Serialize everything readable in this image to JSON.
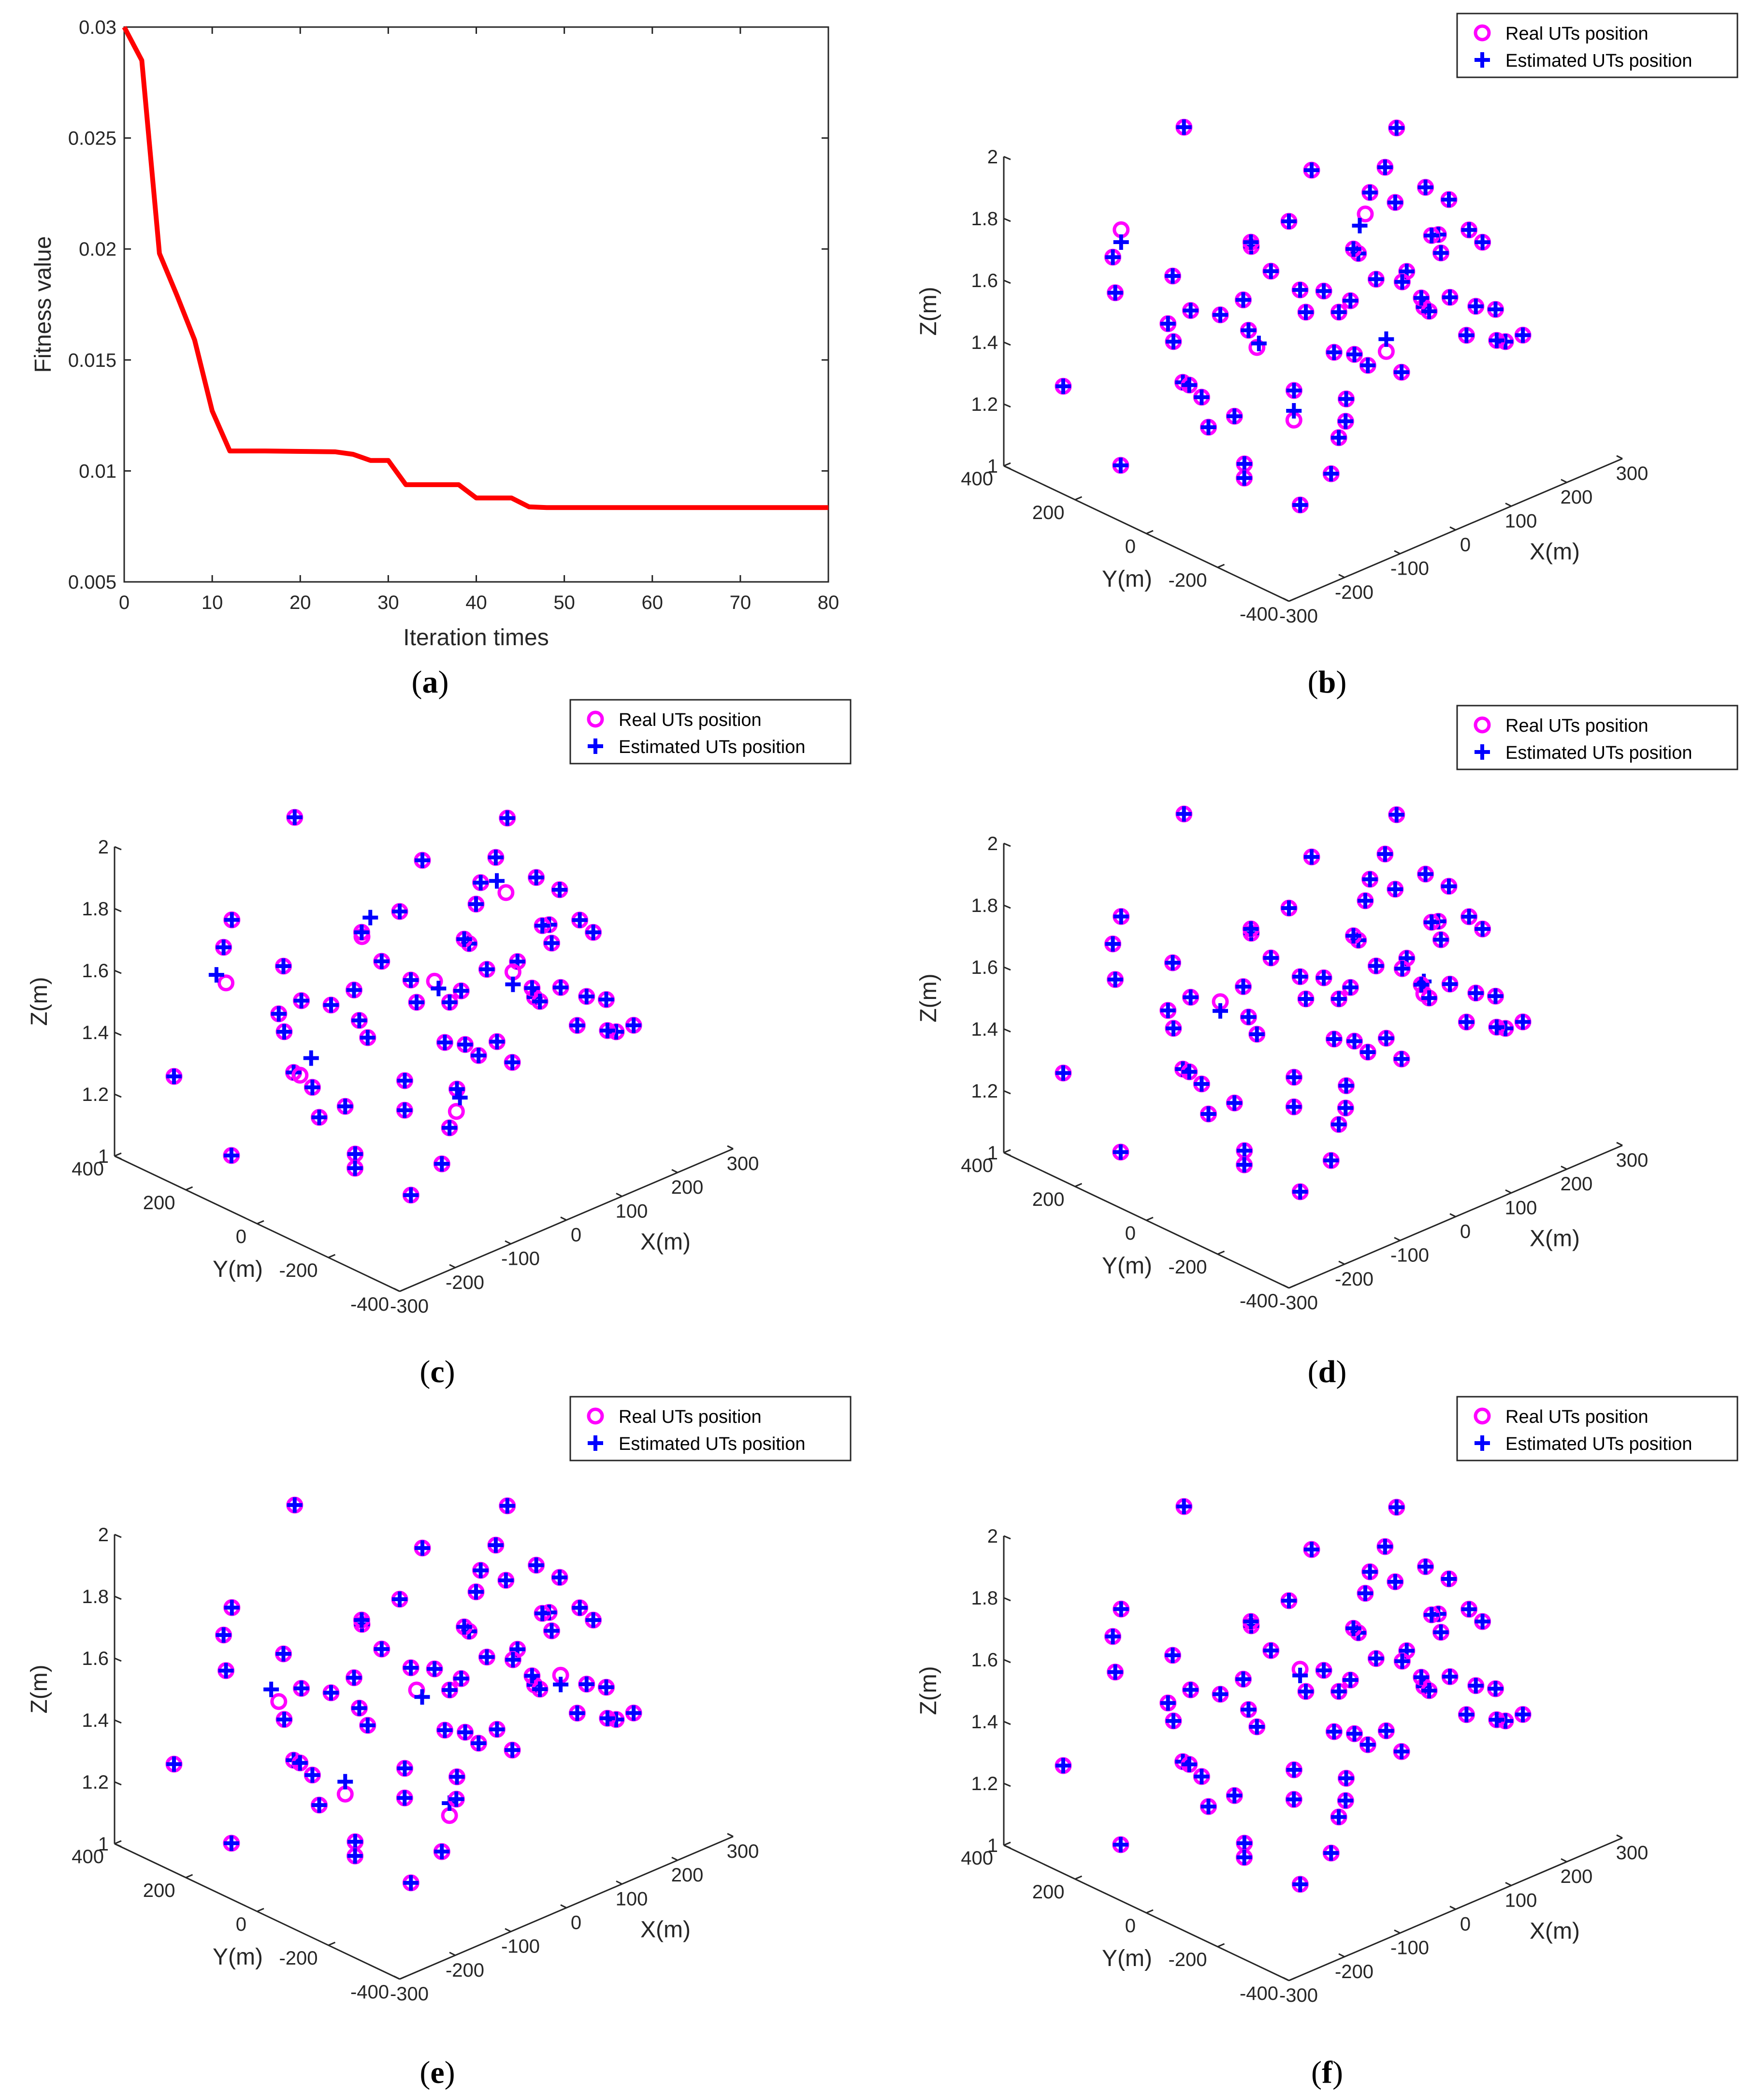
{
  "figure": {
    "captions": [
      "(a)",
      "(b)",
      "(c)",
      "(d)",
      "(e)",
      "(f)"
    ],
    "caption_letters": [
      "a",
      "b",
      "c",
      "d",
      "e",
      "f"
    ]
  },
  "colors": {
    "line": "#ff0000",
    "real_marker": "#ff00ff",
    "estimated_marker": "#0000ff",
    "axis": "#262626"
  },
  "chart_data": [
    {
      "id": "a",
      "type": "line",
      "title": "",
      "xlabel": "Iteration times",
      "ylabel": "Fitness value",
      "xlim": [
        0,
        80
      ],
      "ylim": [
        0.005,
        0.03
      ],
      "xticks": [
        0,
        10,
        20,
        30,
        40,
        50,
        60,
        70,
        80
      ],
      "xticklabels": [
        "0",
        "10",
        "20",
        "30",
        "40",
        "50",
        "60",
        "70",
        "80"
      ],
      "yticks": [
        0.005,
        0.01,
        0.015,
        0.02,
        0.025,
        0.03
      ],
      "yticklabels": [
        "0.005",
        "0.01",
        "0.015",
        "0.02",
        "0.025",
        "0.03"
      ],
      "series": [
        {
          "name": "Fitness value",
          "x": [
            0,
            2,
            4,
            6,
            8,
            10,
            12,
            16,
            20,
            24,
            26,
            28,
            30,
            32,
            34,
            36,
            38,
            40,
            42,
            44,
            46,
            48,
            50,
            60,
            70,
            80
          ],
          "y": [
            0.03,
            0.0285,
            0.0198,
            0.0179,
            0.0159,
            0.0127,
            0.0109,
            0.0109,
            0.01088,
            0.01086,
            0.01075,
            0.01047,
            0.01047,
            0.00938,
            0.00938,
            0.00938,
            0.00938,
            0.00878,
            0.00878,
            0.00878,
            0.00838,
            0.00835,
            0.00835,
            0.00835,
            0.00835,
            0.00835
          ]
        }
      ]
    },
    {
      "id": "3d-positions",
      "type": "scatter",
      "panels": [
        "b",
        "c",
        "d",
        "e",
        "f"
      ],
      "title": "",
      "xlabel": "X(m)",
      "ylabel": "Y(m)",
      "zlabel": "Z(m)",
      "xlim": [
        -300,
        300
      ],
      "ylim": [
        -400,
        400
      ],
      "zlim": [
        1,
        2
      ],
      "xticklabels": [
        "-300",
        "-200",
        "-100",
        "0",
        "100",
        "200",
        "300"
      ],
      "yticklabels": [
        "-400",
        "-200",
        "0",
        "200",
        "400"
      ],
      "zticklabels": [
        "1",
        "1.2",
        "1.4",
        "1.6",
        "1.8",
        "2"
      ],
      "legend": [
        "Real UTs position",
        "Estimated UTs position"
      ],
      "legend_location": "top-right",
      "series_names": [
        "Real UTs position",
        "Estimated UTs position"
      ],
      "real_points": [
        [
          -270,
          280,
          1.3
        ],
        [
          -200,
          250,
          1.68
        ],
        [
          -170,
          290,
          1.52
        ],
        [
          -230,
          180,
          1.83
        ],
        [
          -150,
          160,
          1.63
        ],
        [
          -120,
          220,
          1.42
        ],
        [
          -60,
          250,
          1.4
        ],
        [
          -40,
          300,
          1.95
        ],
        [
          -90,
          120,
          1.48
        ],
        [
          -60,
          80,
          1.7
        ],
        [
          -20,
          150,
          1.36
        ],
        [
          10,
          190,
          1.6
        ],
        [
          40,
          220,
          1.22
        ],
        [
          -5,
          60,
          1.75
        ],
        [
          60,
          130,
          1.44
        ],
        [
          100,
          160,
          1.78
        ],
        [
          -260,
          -40,
          1.48
        ],
        [
          -180,
          -60,
          1.32
        ],
        [
          -130,
          -10,
          1.1
        ],
        [
          -60,
          -40,
          1.3
        ],
        [
          0,
          -30,
          1.57
        ],
        [
          40,
          -10,
          1.46
        ],
        [
          80,
          20,
          1.45
        ],
        [
          120,
          60,
          1.55
        ],
        [
          160,
          90,
          1.7
        ],
        [
          200,
          110,
          1.74
        ],
        [
          240,
          140,
          1.82
        ],
        [
          260,
          90,
          1.64
        ],
        [
          -220,
          -150,
          1.2
        ],
        [
          -150,
          -180,
          1.35
        ],
        [
          -90,
          -120,
          1.62
        ],
        [
          -30,
          -160,
          1.8
        ],
        [
          30,
          -130,
          1.64
        ],
        [
          90,
          -90,
          1.82
        ],
        [
          130,
          -60,
          1.55
        ],
        [
          180,
          -30,
          1.38
        ],
        [
          230,
          0,
          1.5
        ],
        [
          270,
          40,
          1.62
        ],
        [
          -190,
          -260,
          1.15
        ],
        [
          -120,
          -280,
          1.45
        ],
        [
          -60,
          -240,
          1.98
        ],
        [
          0,
          -250,
          1.72
        ],
        [
          60,
          -210,
          1.6
        ],
        [
          110,
          -180,
          1.75
        ],
        [
          150,
          -150,
          1.5
        ],
        [
          210,
          -110,
          1.65
        ],
        [
          260,
          -70,
          1.55
        ],
        [
          -250,
          150,
          1.1
        ],
        [
          -210,
          20,
          1.4
        ],
        [
          -100,
          40,
          1.58
        ],
        [
          -20,
          -90,
          1.42
        ],
        [
          60,
          -60,
          1.3
        ],
        [
          140,
          -30,
          1.2
        ],
        [
          200,
          -200,
          1.45
        ],
        [
          250,
          -150,
          1.28
        ],
        [
          -160,
          -300,
          1.25
        ],
        [
          -80,
          -330,
          1.6
        ],
        [
          10,
          -310,
          1.65
        ],
        [
          90,
          -290,
          1.5
        ],
        [
          170,
          -250,
          1.4
        ],
        [
          230,
          -230,
          1.36
        ],
        [
          -50,
          -150,
          1.2
        ],
        [
          20,
          -60,
          1.15
        ],
        [
          100,
          40,
          1.25
        ],
        [
          -130,
          110,
          1.25
        ],
        [
          -200,
          80,
          1.5
        ],
        [
          280,
          -20,
          1.3
        ],
        [
          -60,
          200,
          1.05
        ],
        [
          -140,
          -100,
          1.78
        ],
        [
          40,
          -270,
          1.85
        ]
      ],
      "notes": "Estimated positions closely match real positions; panels differ slightly in individual estimation errors."
    }
  ]
}
